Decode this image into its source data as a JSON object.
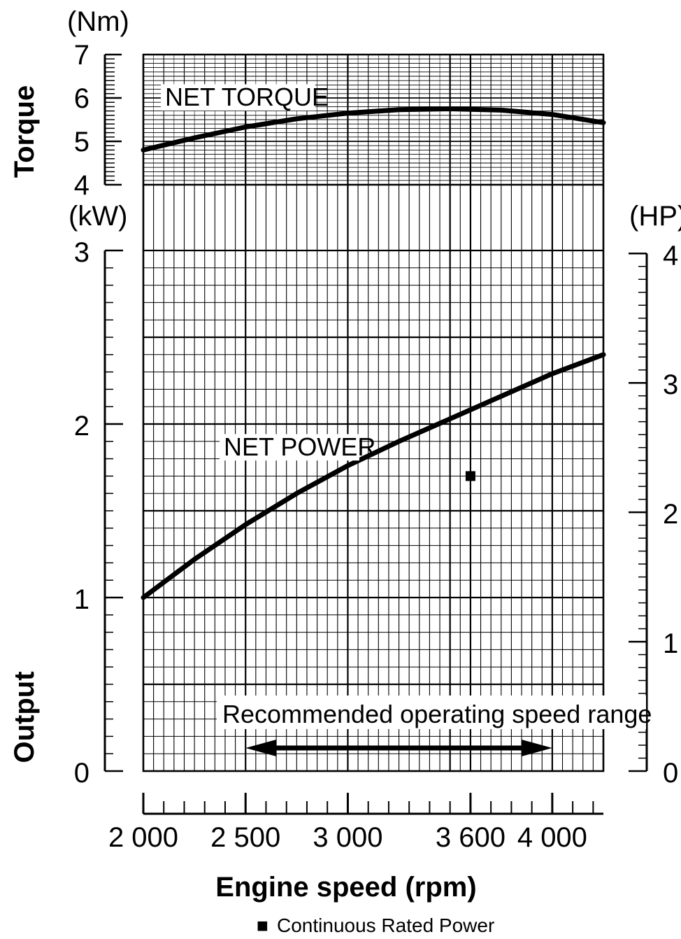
{
  "chart_data": {
    "type": "line",
    "torque_panel": {
      "axis_label": "Torque",
      "unit": "(Nm)",
      "ylim": [
        4,
        7
      ],
      "yticks": [
        "4",
        "5",
        "6",
        "7"
      ],
      "series": [
        {
          "name": "NET TORQUE",
          "x": [
            2000,
            2250,
            2500,
            2750,
            3000,
            3250,
            3500,
            3750,
            4000,
            4250
          ],
          "y": [
            4.8,
            5.08,
            5.33,
            5.52,
            5.65,
            5.73,
            5.75,
            5.72,
            5.62,
            5.43
          ]
        }
      ]
    },
    "output_panel": {
      "axis_label": "Output",
      "unit_left": "(kW)",
      "unit_right": "(HP)",
      "ylim": [
        0,
        3
      ],
      "yticks_left": [
        "0",
        "1",
        "2",
        "3"
      ],
      "yticks_right": [
        "0",
        "1",
        "2",
        "3",
        "4"
      ],
      "series": [
        {
          "name": "NET POWER",
          "x": [
            2000,
            2250,
            2500,
            2750,
            3000,
            3250,
            3500,
            3750,
            4000,
            4250
          ],
          "y": [
            1.0,
            1.22,
            1.42,
            1.6,
            1.76,
            1.9,
            2.03,
            2.16,
            2.29,
            2.4
          ]
        }
      ],
      "marker": {
        "x": 3600,
        "y": 1.7,
        "label": "Continuous Rated Power"
      },
      "range_annotation": {
        "label": "Recommended operating speed range",
        "x_start": 2500,
        "x_end": 4000
      }
    },
    "xlabel": "Engine speed (rpm)",
    "xlim": [
      2000,
      4250
    ],
    "xticks": [
      {
        "value": 2000,
        "label": "2 000"
      },
      {
        "value": 2500,
        "label": "2 500"
      },
      {
        "value": 3000,
        "label": "3 000"
      },
      {
        "value": 3600,
        "label": "3 600"
      },
      {
        "value": 4000,
        "label": "4 000"
      }
    ],
    "legend": {
      "symbol": "■",
      "label": "Continuous Rated Power",
      "placement": "bottom-center"
    },
    "grid": true,
    "colors": {
      "line": "#000000",
      "grid": "#000000",
      "background": "#ffffff"
    }
  }
}
